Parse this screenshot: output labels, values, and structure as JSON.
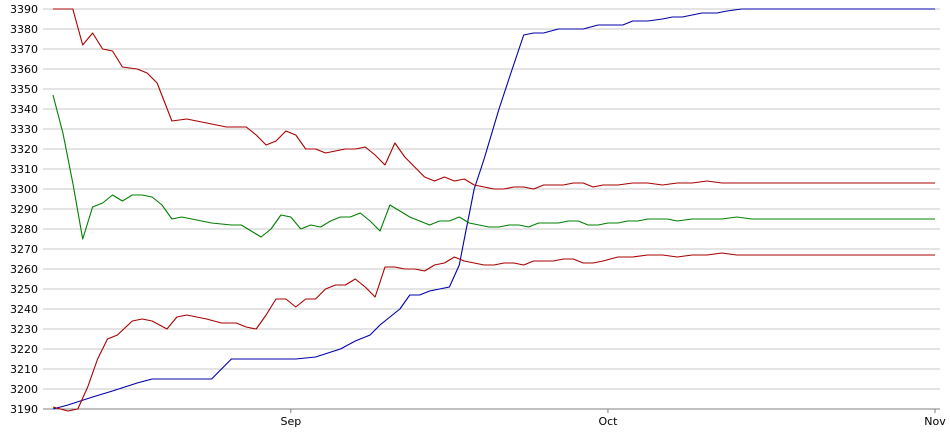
{
  "chart_data": {
    "type": "line",
    "title": "",
    "xlabel": "",
    "ylabel": "",
    "ylim": [
      3190,
      3390
    ],
    "yticks": [
      3190,
      3200,
      3210,
      3220,
      3230,
      3240,
      3250,
      3260,
      3270,
      3280,
      3290,
      3300,
      3310,
      3320,
      3330,
      3340,
      3350,
      3360,
      3370,
      3380,
      3390
    ],
    "grid": true,
    "legend": "none",
    "xlim": [
      -74,
      104
    ],
    "xticks": [
      {
        "label": "Sep",
        "x": -26
      },
      {
        "label": "Oct",
        "x": 38
      },
      {
        "label": "Nov",
        "x": 104
      }
    ],
    "series": [
      {
        "color": "#0000aa",
        "x": [
          -74,
          -71,
          -66,
          -62,
          -57,
          -54,
          -50,
          -42,
          -38,
          -34,
          -30,
          -28,
          -25,
          -21,
          -16,
          -13,
          -10,
          -8,
          -6,
          -4,
          -2,
          0,
          2,
          4,
          6,
          8,
          9,
          11,
          13,
          16,
          18,
          21,
          23,
          25,
          28,
          31,
          33,
          36,
          39,
          41,
          43,
          46,
          49,
          51,
          53,
          55,
          57,
          60,
          62,
          65,
          104
        ],
        "values": [
          3190,
          3192,
          3196,
          3199,
          3203,
          3205,
          3205,
          3205,
          3215,
          3215,
          3215,
          3215,
          3215,
          3216,
          3220,
          3224,
          3227,
          3232,
          3236,
          3240,
          3247,
          3247,
          3249,
          3250,
          3251,
          3262,
          3275,
          3300,
          3315,
          3340,
          3355,
          3377,
          3378,
          3378,
          3380,
          3380,
          3380,
          3382,
          3382,
          3382,
          3384,
          3384,
          3385,
          3386,
          3386,
          3387,
          3388,
          3388,
          3389,
          3390,
          3390
        ]
      },
      {
        "color": "#aa0000",
        "x": [
          -74,
          -70,
          -68,
          -66,
          -64,
          -62,
          -60,
          -57,
          -55,
          -53,
          -50,
          -47,
          -45,
          -43,
          -41,
          -39,
          -35,
          -33,
          -31,
          -29,
          -27,
          -25,
          -23,
          -21,
          -19,
          -17,
          -15,
          -13,
          -11,
          -9,
          -7,
          -5,
          -3,
          -1,
          1,
          3,
          5,
          7,
          9,
          11,
          13,
          15,
          17,
          19,
          21,
          23,
          25,
          27,
          29,
          31,
          33,
          35,
          37,
          40,
          43,
          46,
          49,
          52,
          55,
          58,
          61,
          64,
          67,
          70,
          104
        ],
        "values": [
          3390,
          3390,
          3372,
          3378,
          3370,
          3369,
          3361,
          3360,
          3358,
          3353,
          3334,
          3335,
          3334,
          3333,
          3332,
          3331,
          3331,
          3327,
          3322,
          3324,
          3329,
          3327,
          3320,
          3320,
          3318,
          3319,
          3320,
          3320,
          3321,
          3317,
          3312,
          3323,
          3316,
          3311,
          3306,
          3304,
          3306,
          3304,
          3305,
          3302,
          3301,
          3300,
          3300,
          3301,
          3301,
          3300,
          3302,
          3302,
          3302,
          3303,
          3303,
          3301,
          3302,
          3302,
          3303,
          3303,
          3302,
          3303,
          3303,
          3304,
          3303,
          3303,
          3303,
          3303,
          3303
        ]
      },
      {
        "color": "#aa0000",
        "x": [
          -74,
          -71,
          -69,
          -67,
          -65,
          -63,
          -61,
          -58,
          -56,
          -54,
          -51,
          -49,
          -47,
          -43,
          -40,
          -37,
          -35,
          -33,
          -31,
          -29,
          -27,
          -25,
          -23,
          -21,
          -19,
          -17,
          -15,
          -13,
          -11,
          -9,
          -7,
          -5,
          -3,
          -1,
          1,
          3,
          5,
          7,
          9,
          11,
          13,
          15,
          17,
          19,
          21,
          23,
          25,
          27,
          29,
          31,
          33,
          35,
          37,
          40,
          43,
          46,
          49,
          52,
          55,
          58,
          61,
          64,
          67,
          70,
          104
        ],
        "values": [
          3191,
          3189,
          3190,
          3201,
          3215,
          3225,
          3227,
          3234,
          3235,
          3234,
          3230,
          3236,
          3237,
          3235,
          3233,
          3233,
          3231,
          3230,
          3237,
          3245,
          3245,
          3241,
          3245,
          3245,
          3250,
          3252,
          3252,
          3255,
          3251,
          3246,
          3261,
          3261,
          3260,
          3260,
          3259,
          3262,
          3263,
          3266,
          3264,
          3263,
          3262,
          3262,
          3263,
          3263,
          3262,
          3264,
          3264,
          3264,
          3265,
          3265,
          3263,
          3263,
          3264,
          3266,
          3266,
          3267,
          3267,
          3266,
          3267,
          3267,
          3268,
          3267,
          3267,
          3267,
          3267
        ]
      },
      {
        "color": "#008000",
        "x": [
          -74,
          -72,
          -70,
          -68,
          -66,
          -64,
          -62,
          -60,
          -58,
          -56,
          -54,
          -52,
          -50,
          -48,
          -46,
          -44,
          -42,
          -38,
          -36,
          -34,
          -32,
          -30,
          -28,
          -26,
          -24,
          -22,
          -20,
          -18,
          -16,
          -14,
          -12,
          -10,
          -8,
          -6,
          -4,
          -2,
          0,
          2,
          4,
          6,
          8,
          10,
          12,
          14,
          16,
          18,
          20,
          22,
          24,
          26,
          28,
          30,
          32,
          34,
          36,
          38,
          40,
          42,
          44,
          46,
          48,
          50,
          52,
          55,
          58,
          61,
          64,
          67,
          70,
          104
        ],
        "values": [
          3347,
          3328,
          3303,
          3275,
          3291,
          3293,
          3297,
          3294,
          3297,
          3297,
          3296,
          3292,
          3285,
          3286,
          3285,
          3284,
          3283,
          3282,
          3282,
          3279,
          3276,
          3280,
          3287,
          3286,
          3280,
          3282,
          3281,
          3284,
          3286,
          3286,
          3288,
          3284,
          3279,
          3292,
          3289,
          3286,
          3284,
          3282,
          3284,
          3284,
          3286,
          3283,
          3282,
          3281,
          3281,
          3282,
          3282,
          3281,
          3283,
          3283,
          3283,
          3284,
          3284,
          3282,
          3282,
          3283,
          3283,
          3284,
          3284,
          3285,
          3285,
          3285,
          3284,
          3285,
          3285,
          3285,
          3286,
          3285,
          3285,
          3285
        ]
      }
    ]
  }
}
